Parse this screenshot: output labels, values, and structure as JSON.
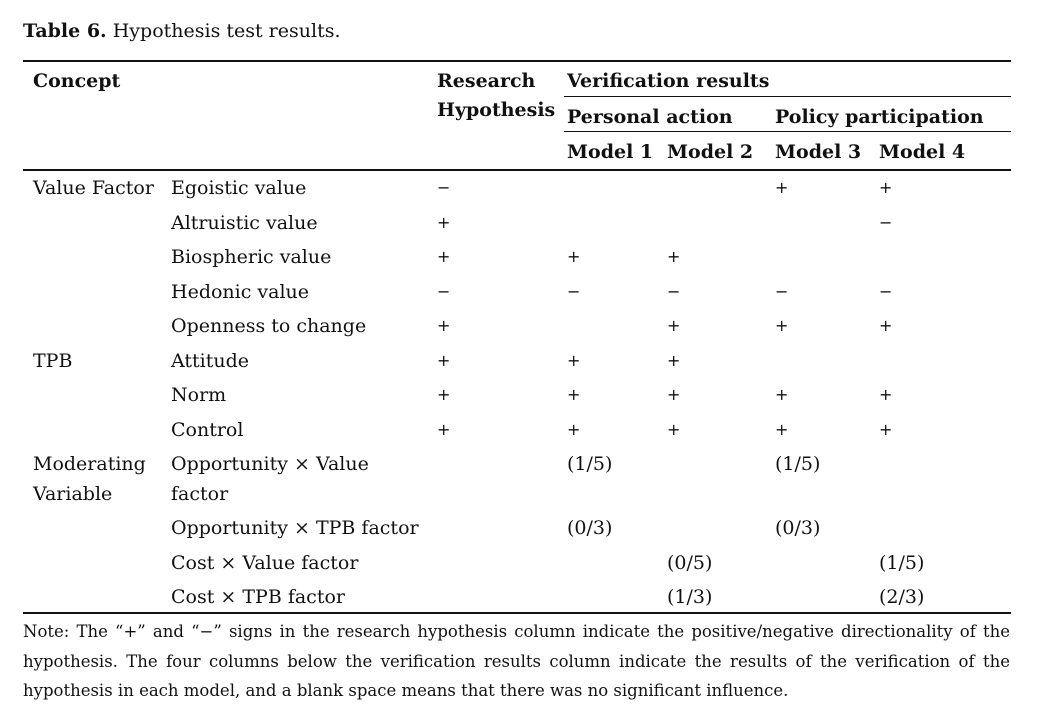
{
  "caption": {
    "label": "Table 6.",
    "text": "Hypothesis test results."
  },
  "headers": {
    "concept": "Concept",
    "research_line1": "Research",
    "research_line2": "Hypothesis",
    "verification": "Verification results",
    "personal_action": "Personal action",
    "policy_participation": "Policy participation",
    "model1": "Model 1",
    "model2": "Model 2",
    "model3": "Model 3",
    "model4": "Model 4"
  },
  "groups": {
    "value_factor": "Value Factor",
    "tpb": "TPB",
    "moderating_line1": "Moderating",
    "moderating_line2": "Variable"
  },
  "rows": [
    {
      "item": "Egoistic value",
      "h": "−",
      "m1": "",
      "m2": "",
      "m3": "+",
      "m4": "+"
    },
    {
      "item": "Altruistic value",
      "h": "+",
      "m1": "",
      "m2": "",
      "m3": "",
      "m4": "−"
    },
    {
      "item": "Biospheric value",
      "h": "+",
      "m1": "+",
      "m2": "+",
      "m3": "",
      "m4": ""
    },
    {
      "item": "Hedonic value",
      "h": "−",
      "m1": "−",
      "m2": "−",
      "m3": "−",
      "m4": "−"
    },
    {
      "item": "Openness to change",
      "h": "+",
      "m1": "",
      "m2": "+",
      "m3": "+",
      "m4": "+"
    },
    {
      "item": "Attitude",
      "h": "+",
      "m1": "+",
      "m2": "+",
      "m3": "",
      "m4": ""
    },
    {
      "item": "Norm",
      "h": "+",
      "m1": "+",
      "m2": "+",
      "m3": "+",
      "m4": "+"
    },
    {
      "item": "Control",
      "h": "+",
      "m1": "+",
      "m2": "+",
      "m3": "+",
      "m4": "+"
    },
    {
      "item_line1": "Opportunity × Value",
      "item_line2": "factor",
      "h": "",
      "m1": "(1/5)",
      "m2": "",
      "m3": "(1/5)",
      "m4": ""
    },
    {
      "item": "Opportunity × TPB factor",
      "h": "",
      "m1": "(0/3)",
      "m2": "",
      "m3": "(0/3)",
      "m4": ""
    },
    {
      "item": "Cost × Value factor",
      "h": "",
      "m1": "",
      "m2": "(0/5)",
      "m3": "",
      "m4": "(1/5)"
    },
    {
      "item": "Cost × TPB factor",
      "h": "",
      "m1": "",
      "m2": "(1/3)",
      "m3": "",
      "m4": "(2/3)"
    }
  ],
  "note": "Note: The “+” and “−” signs in the research hypothesis column indicate the positive/negative directionality of the hypothesis. The four columns below the verification results column indicate the results of the verification of the hypothesis in each model, and a blank space means that there was no significant influence."
}
